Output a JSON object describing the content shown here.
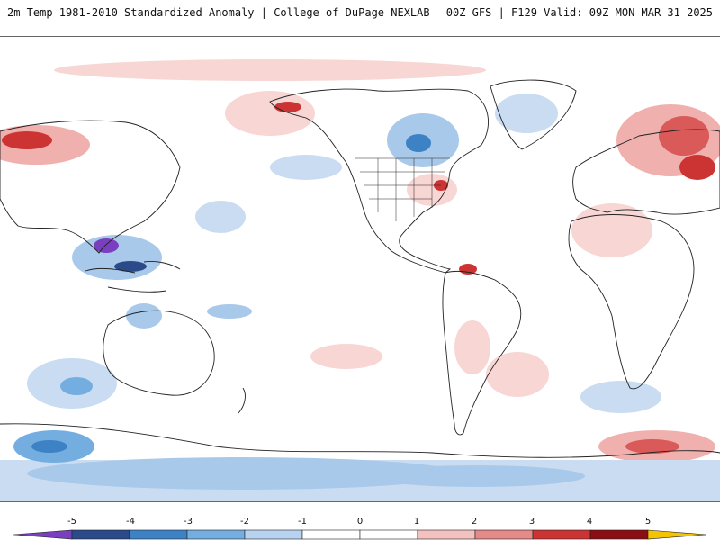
{
  "header": {
    "title": "2m Temp 1981-2010 Standardized Anomaly | College of DuPage NEXLAB",
    "run_info": "00Z GFS | F129 Valid: 09Z MON MAR 31 2025"
  },
  "colorbar": {
    "ticks": [
      "-5",
      "-4",
      "-3",
      "-2",
      "-1",
      "0",
      "1",
      "2",
      "3",
      "4",
      "5"
    ],
    "colors": [
      "#7a3fc0",
      "#2b4a8a",
      "#3e82c6",
      "#74aee0",
      "#b8d3ef",
      "#ffffff",
      "#ffffff",
      "#f3c2c0",
      "#e48a88",
      "#cc3333",
      "#8b0e14",
      "#f5c400"
    ],
    "min_arrow_color": "#7a3fc0",
    "max_arrow_color": "#f5c400"
  },
  "map": {
    "land_outline_color": "#222222",
    "positive_color": "#f3c2c0",
    "negative_color": "#c9dcf2"
  }
}
